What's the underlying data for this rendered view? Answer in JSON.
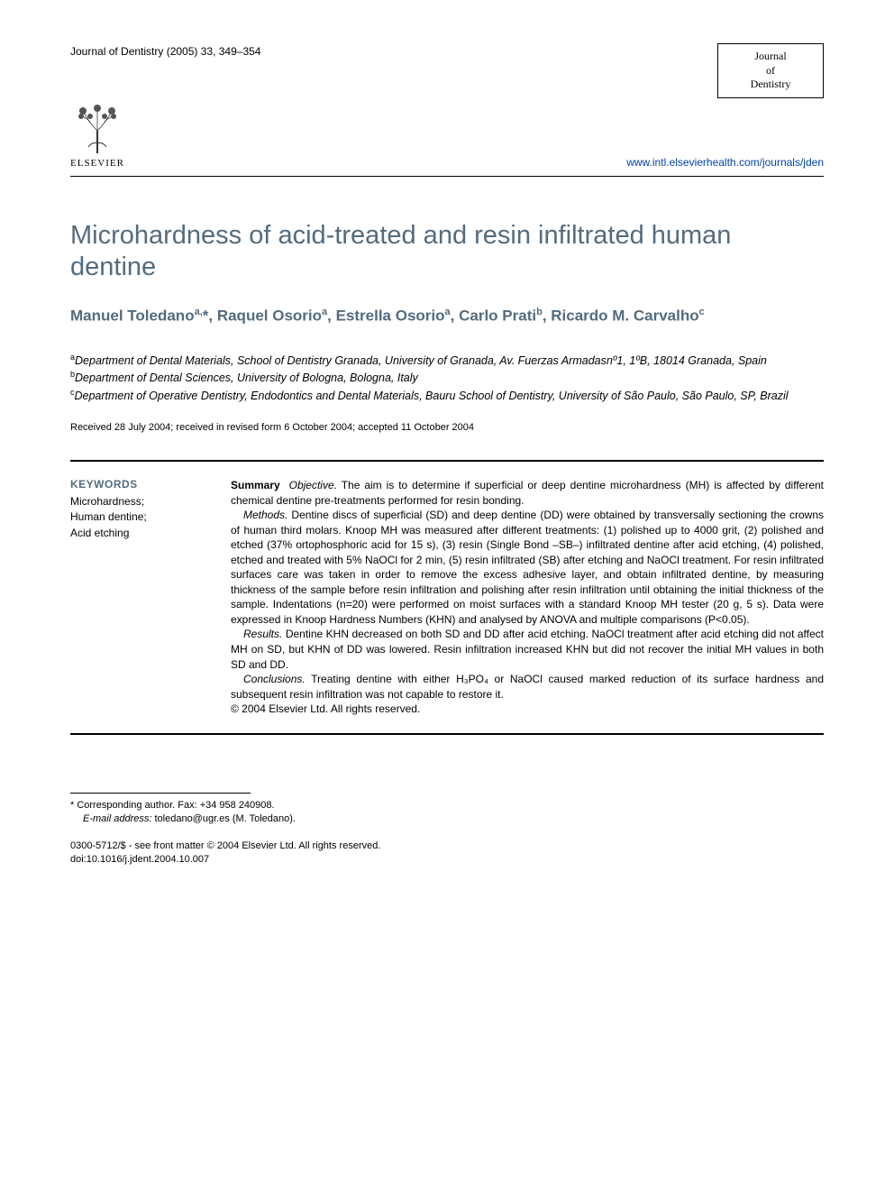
{
  "header": {
    "journal_ref": "Journal of Dentistry (2005) 33, 349–354",
    "journal_box_line1": "Journal",
    "journal_box_line2": "of",
    "journal_box_line3": "Dentistry",
    "publisher": "ELSEVIER",
    "url": "www.intl.elsevierhealth.com/journals/jden"
  },
  "title": "Microhardness of acid-treated and resin infiltrated human dentine",
  "authors_html": "Manuel Toledano<sup>a,</sup>*, Raquel Osorio<sup>a</sup>, Estrella Osorio<sup>a</sup>, Carlo Prati<sup>b</sup>, Ricardo M. Carvalho<sup>c</sup>",
  "affiliations": {
    "a": "Department of Dental Materials, School of Dentistry Granada, University of Granada, Av. Fuerzas Armadasnº1, 1ºB, 18014 Granada, Spain",
    "b": "Department of Dental Sciences, University of Bologna, Bologna, Italy",
    "c": "Department of Operative Dentistry, Endodontics and Dental Materials, Bauru School of Dentistry, University of São Paulo, São Paulo, SP, Brazil"
  },
  "received": "Received 28 July 2004; received in revised form 6 October 2004; accepted 11 October 2004",
  "keywords": {
    "heading": "KEYWORDS",
    "items": [
      "Microhardness;",
      "Human dentine;",
      "Acid etching"
    ]
  },
  "abstract": {
    "summary_label": "Summary",
    "objective_label": "Objective.",
    "objective_text": " The aim is to determine if superficial or deep dentine microhardness (MH) is affected by different chemical dentine pre-treatments performed for resin bonding.",
    "methods_label": "Methods.",
    "methods_text": " Dentine discs of superficial (SD) and deep dentine (DD) were obtained by transversally sectioning the crowns of human third molars. Knoop MH was measured after different treatments: (1) polished up to 4000 grit, (2) polished and etched (37% ortophosphoric acid for 15 s), (3) resin (Single Bond –SB–) infiltrated dentine after acid etching, (4) polished, etched and treated with 5% NaOCl for 2 min, (5) resin infiltrated (SB) after etching and NaOCl treatment. For resin infiltrated surfaces care was taken in order to remove the excess adhesive layer, and obtain infiltrated dentine, by measuring thickness of the sample before resin infiltration and polishing after resin infiltration until obtaining the initial thickness of the sample. Indentations (n=20) were performed on moist surfaces with a standard Knoop MH tester (20 g, 5 s). Data were expressed in Knoop Hardness Numbers (KHN) and analysed by ANOVA and multiple comparisons (P<0.05).",
    "results_label": "Results.",
    "results_text": " Dentine KHN decreased on both SD and DD after acid etching. NaOCl treatment after acid etching did not affect MH on SD, but KHN of DD was lowered. Resin infiltration increased KHN but did not recover the initial MH values in both SD and DD.",
    "conclusions_label": "Conclusions.",
    "conclusions_text": " Treating dentine with either H₃PO₄ or NaOCl caused marked reduction of its surface hardness and subsequent resin infiltration was not capable to restore it.",
    "copyright": "© 2004 Elsevier Ltd. All rights reserved."
  },
  "corresponding": {
    "note": "* Corresponding author. Fax: +34 958 240908.",
    "email_label": "E-mail address:",
    "email": " toledano@ugr.es (M. Toledano)."
  },
  "footer": {
    "line1": "0300-5712/$ - see front matter © 2004 Elsevier Ltd. All rights reserved.",
    "line2": "doi:10.1016/j.jdent.2004.10.007"
  },
  "colors": {
    "heading_color": "#546b7e",
    "text_color": "#000000",
    "link_color": "#0044aa",
    "background": "#ffffff"
  }
}
